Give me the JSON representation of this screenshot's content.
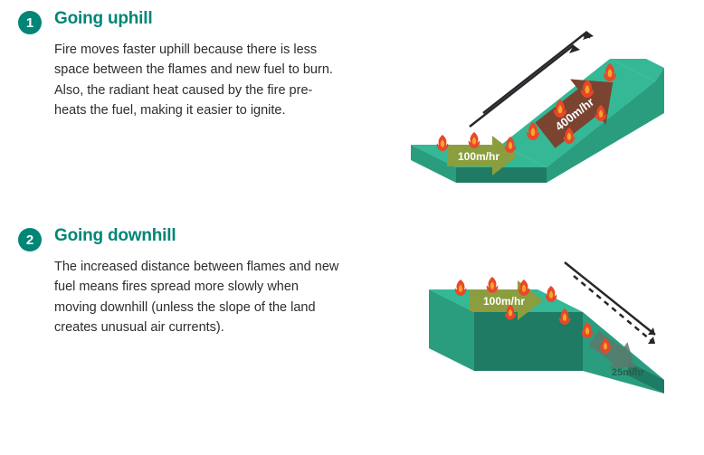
{
  "sections": [
    {
      "num": "1",
      "title": "Going uphill",
      "body": "Fire moves faster uphill because there is less space between the flames and new fuel to burn. Also, the radiant heat caused by the fire pre-heats the fuel, making it easier to ignite.",
      "diagram": {
        "type": "isometric-slope",
        "direction": "uphill",
        "flat_speed": "100m/hr",
        "slope_speed": "400m/hr",
        "terrain_top_color": "#34b896",
        "terrain_side_color": "#2a9d7f",
        "terrain_front_color": "#1f7b63",
        "flat_arrow_color": "#8a9e3f",
        "slope_arrow_color": "#7a4431",
        "speed_text_color": "#ffffff",
        "motion_line_color": "#25272a",
        "flame_outer": "#e8472b",
        "flame_inner": "#f5a623"
      }
    },
    {
      "num": "2",
      "title": "Going downhill",
      "body": "The increased distance between flames and new fuel means fires spread more slowly when moving downhill (unless the slope of the land creates unusual air currents).",
      "diagram": {
        "type": "isometric-slope",
        "direction": "downhill",
        "flat_speed": "100m/hr",
        "slope_speed": "25m/hr",
        "terrain_top_color": "#34b896",
        "terrain_side_color": "#2a9d7f",
        "terrain_front_color": "#1f7b63",
        "flat_arrow_color": "#8a9e3f",
        "slope_arrow_color": "#5a7a6c",
        "speed_text_color": "#ffffff",
        "speed_text_color_dark": "#2d5a4a",
        "motion_line_color": "#25272a",
        "flame_outer": "#e8472b",
        "flame_inner": "#f5a623"
      }
    }
  ],
  "style": {
    "accent_color": "#008577",
    "badge_bg": "#008577",
    "badge_text": "#ffffff",
    "body_text": "#2d2d2d"
  }
}
